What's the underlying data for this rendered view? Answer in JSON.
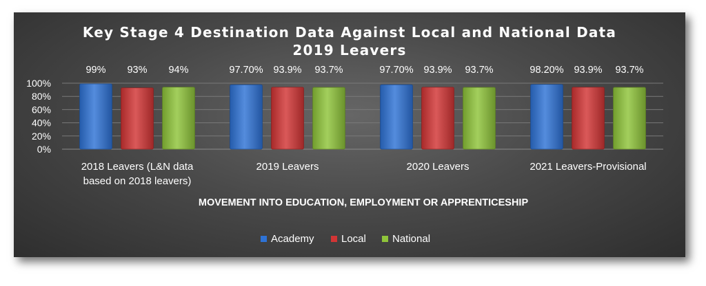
{
  "chart_data": {
    "type": "bar",
    "title_lines": [
      "Key Stage 4 Destination Data Against Local and National  Data",
      "2019 Leavers"
    ],
    "xlabel": "MOVEMENT INTO EDUCATION, EMPLOYMENT OR APPRENTICESHIP",
    "ylabel": "",
    "ylim": [
      0,
      1
    ],
    "yticks": [
      "0%",
      "20%",
      "40%",
      "60%",
      "80%",
      "100%"
    ],
    "categories": [
      [
        "2018 Leavers (L&N data",
        "based on 2018 leavers)"
      ],
      [
        "2019 Leavers"
      ],
      [
        "2020 Leavers"
      ],
      [
        "2021 Leavers-Provisional"
      ]
    ],
    "series": [
      {
        "name": "Academy",
        "color": "#2e73d6",
        "values": [
          0.99,
          0.977,
          0.977,
          0.982
        ],
        "labels": [
          "99%",
          "97.70%",
          "97.70%",
          "98.20%"
        ]
      },
      {
        "name": "Local",
        "color": "#d23535",
        "values": [
          0.93,
          0.939,
          0.939,
          0.939
        ],
        "labels": [
          "93%",
          "93.9%",
          "93.9%",
          "93.9%"
        ]
      },
      {
        "name": "National",
        "color": "#8fc43a",
        "values": [
          0.94,
          0.937,
          0.937,
          0.937
        ],
        "labels": [
          "94%",
          "93.7%",
          "93.7%",
          "93.7%"
        ]
      }
    ],
    "grid": true,
    "legend_position": "bottom"
  }
}
